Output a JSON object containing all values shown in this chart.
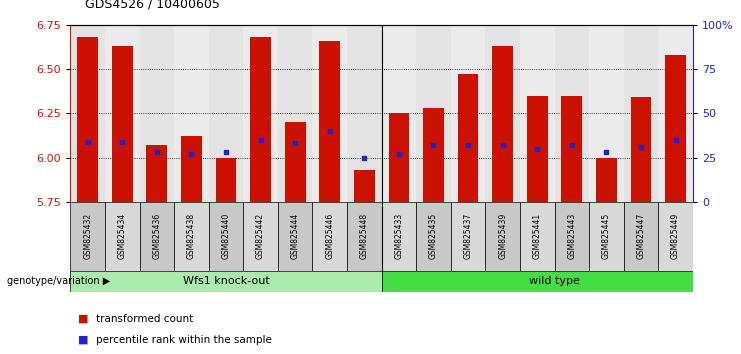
{
  "title": "GDS4526 / 10400605",
  "samples": [
    "GSM825432",
    "GSM825434",
    "GSM825436",
    "GSM825438",
    "GSM825440",
    "GSM825442",
    "GSM825444",
    "GSM825446",
    "GSM825448",
    "GSM825433",
    "GSM825435",
    "GSM825437",
    "GSM825439",
    "GSM825441",
    "GSM825443",
    "GSM825445",
    "GSM825447",
    "GSM825449"
  ],
  "transformed_count": [
    6.68,
    6.63,
    6.07,
    6.12,
    6.0,
    6.68,
    6.2,
    6.66,
    5.93,
    6.25,
    6.28,
    6.47,
    6.63,
    6.35,
    6.35,
    6.0,
    6.34,
    6.58
  ],
  "percentile_rank": [
    6.09,
    6.09,
    6.03,
    6.02,
    6.03,
    6.1,
    6.08,
    6.15,
    6.0,
    6.02,
    6.07,
    6.07,
    6.07,
    6.05,
    6.07,
    6.03,
    6.06,
    6.1
  ],
  "y_min": 5.75,
  "y_max": 6.75,
  "y_ticks": [
    5.75,
    6.0,
    6.25,
    6.5,
    6.75
  ],
  "right_y_ticks": [
    0,
    25,
    50,
    75,
    100
  ],
  "right_y_labels": [
    "0",
    "25",
    "50",
    "75",
    "100%"
  ],
  "group1_label": "Wfs1 knock-out",
  "group2_label": "wild type",
  "group1_count": 9,
  "group2_count": 9,
  "group1_color": "#AAEAAA",
  "group2_color": "#44DD44",
  "bar_color": "#CC1100",
  "dot_color": "#2222CC",
  "genotype_label": "genotype/variation",
  "legend_bar": "transformed count",
  "legend_dot": "percentile rank within the sample",
  "bar_width": 0.6,
  "baseline": 5.75,
  "col_bg_odd": "#C8C8C8",
  "col_bg_even": "#D8D8D8"
}
